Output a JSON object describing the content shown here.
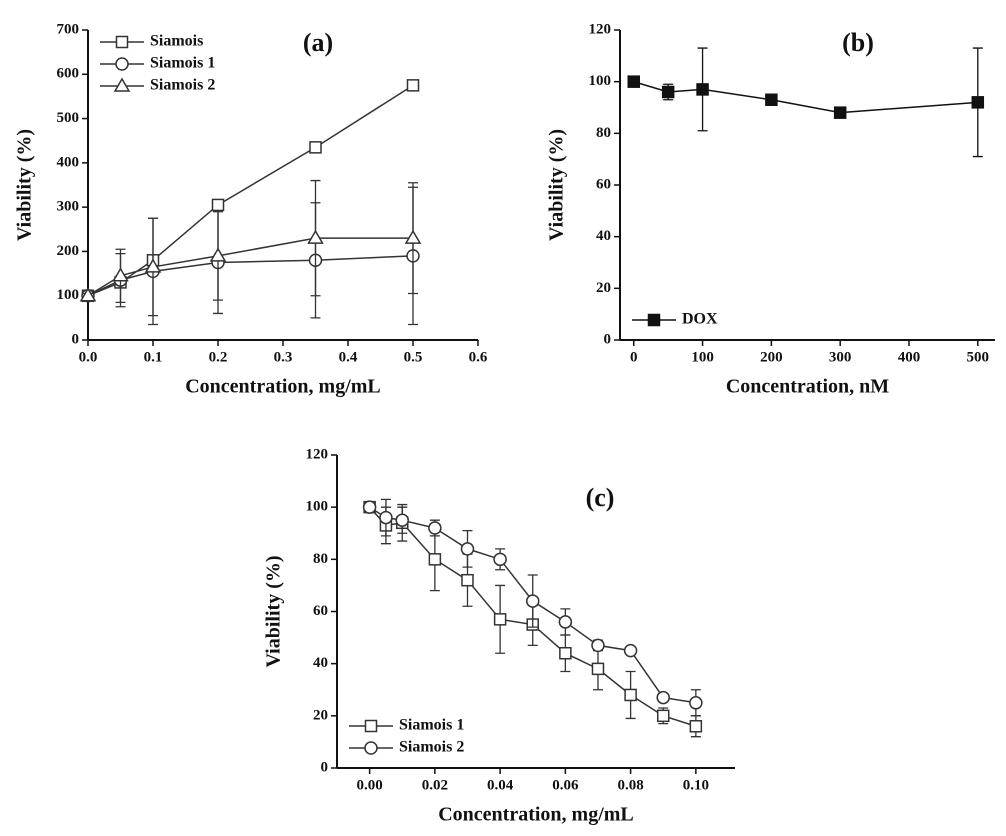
{
  "chart_data": [
    {
      "type": "line",
      "panel_label": "(a)",
      "xlabel": "Concentration, mg/mL",
      "ylabel": "Viability (%)",
      "x": [
        0,
        0.05,
        0.1,
        0.2,
        0.35,
        0.5
      ],
      "series": [
        {
          "name": "Siamois",
          "color": "#333333",
          "marker": "square",
          "values": [
            100,
            130,
            180,
            305,
            435,
            575
          ],
          "errors": [
            5,
            10,
            10,
            10,
            10,
            8
          ]
        },
        {
          "name": "Siamois 1",
          "color": "#333333",
          "marker": "circle",
          "values": [
            100,
            135,
            155,
            175,
            180,
            190
          ],
          "errors": [
            5,
            60,
            120,
            115,
            130,
            155
          ]
        },
        {
          "name": "Siamois 2",
          "color": "#333333",
          "marker": "triangle",
          "values": [
            100,
            145,
            165,
            190,
            230,
            230
          ],
          "errors": [
            5,
            60,
            110,
            100,
            130,
            125
          ]
        }
      ],
      "xlim": [
        0,
        0.6
      ],
      "ylim": [
        0,
        700
      ],
      "xticks": [
        {
          "value": 0,
          "label": "0.0"
        },
        0.1,
        0.2,
        0.3,
        0.4,
        0.5,
        0.6
      ],
      "yticks": [
        0,
        100,
        200,
        300,
        400,
        500,
        600,
        700
      ],
      "legend": "upper left"
    },
    {
      "type": "line",
      "panel_label": "(b)",
      "xlabel": "Concentration, nM",
      "ylabel": "Viability (%)",
      "x": [
        0,
        50,
        100,
        200,
        300,
        500
      ],
      "series": [
        {
          "name": "DOX",
          "color": "#111111",
          "marker": "filled-square",
          "values": [
            100,
            96,
            97,
            93,
            88,
            92
          ],
          "errors": [
            1,
            3,
            16,
            1,
            1,
            21
          ]
        }
      ],
      "xlim": [
        -20,
        525
      ],
      "ylim": [
        0,
        120
      ],
      "xticks": [
        0,
        100,
        200,
        300,
        400,
        500
      ],
      "yticks": [
        0,
        20,
        40,
        60,
        80,
        100,
        120
      ],
      "legend": "lower left"
    },
    {
      "type": "line",
      "panel_label": "(c)",
      "xlabel": "Concentration, mg/mL",
      "ylabel": "Viability (%)",
      "x": [
        0,
        0.005,
        0.01,
        0.02,
        0.03,
        0.04,
        0.05,
        0.06,
        0.07,
        0.08,
        0.09,
        0.1
      ],
      "series": [
        {
          "name": "Siamois 1",
          "color": "#333333",
          "marker": "square",
          "values": [
            100,
            93,
            94,
            80,
            72,
            57,
            55,
            44,
            38,
            28,
            20,
            16
          ],
          "errors": [
            1,
            7,
            7,
            12,
            10,
            13,
            8,
            7,
            8,
            9,
            3,
            4
          ]
        },
        {
          "name": "Siamois 2",
          "color": "#333333",
          "marker": "circle",
          "values": [
            100,
            96,
            95,
            92,
            84,
            80,
            64,
            56,
            47,
            45,
            27,
            25
          ],
          "errors": [
            1,
            7,
            5,
            3,
            7,
            4,
            10,
            5,
            2,
            1,
            1,
            5
          ]
        }
      ],
      "xlim": [
        -0.01,
        0.112
      ],
      "ylim": [
        0,
        120
      ],
      "xticks": [
        {
          "value": 0,
          "label": "0.00"
        },
        {
          "value": 0.02,
          "label": "0.02"
        },
        {
          "value": 0.04,
          "label": "0.04"
        },
        {
          "value": 0.06,
          "label": "0.06"
        },
        {
          "value": 0.08,
          "label": "0.08"
        },
        {
          "value": 0.1,
          "label": "0.10"
        }
      ],
      "yticks": [
        0,
        20,
        40,
        60,
        80,
        100,
        120
      ],
      "legend": "lower left"
    }
  ]
}
